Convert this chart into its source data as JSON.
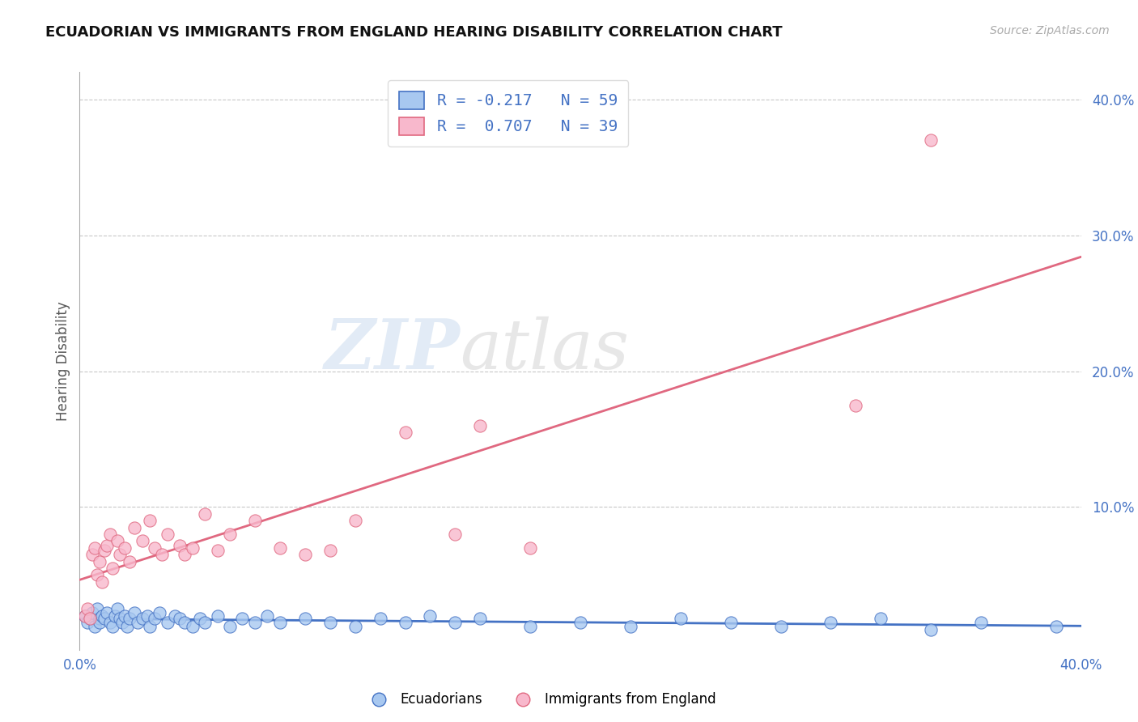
{
  "title": "ECUADORIAN VS IMMIGRANTS FROM ENGLAND HEARING DISABILITY CORRELATION CHART",
  "source_text": "Source: ZipAtlas.com",
  "ylabel": "Hearing Disability",
  "xlim": [
    0.0,
    0.4
  ],
  "ylim": [
    -0.005,
    0.42
  ],
  "ytick_vals": [
    0.0,
    0.1,
    0.2,
    0.3,
    0.4
  ],
  "ytick_labels": [
    "",
    "10.0%",
    "20.0%",
    "30.0%",
    "40.0%"
  ],
  "xtick_vals": [
    0.0,
    0.1,
    0.2,
    0.3,
    0.4
  ],
  "xtick_labels": [
    "0.0%",
    "",
    "",
    "",
    "40.0%"
  ],
  "blue_fill": "#A8C8F0",
  "pink_fill": "#F8B8CC",
  "blue_edge": "#4472C4",
  "pink_edge": "#E06880",
  "blue_line": "#4472C4",
  "pink_line": "#E06880",
  "r_blue": -0.217,
  "n_blue": 59,
  "r_pink": 0.707,
  "n_pink": 39,
  "watermark_top": "ZIP",
  "watermark_bot": "atlas",
  "blue_scatter_x": [
    0.002,
    0.003,
    0.004,
    0.005,
    0.006,
    0.007,
    0.008,
    0.008,
    0.009,
    0.01,
    0.011,
    0.012,
    0.013,
    0.014,
    0.015,
    0.016,
    0.017,
    0.018,
    0.019,
    0.02,
    0.022,
    0.023,
    0.025,
    0.027,
    0.028,
    0.03,
    0.032,
    0.035,
    0.038,
    0.04,
    0.042,
    0.045,
    0.048,
    0.05,
    0.055,
    0.06,
    0.065,
    0.07,
    0.075,
    0.08,
    0.09,
    0.1,
    0.11,
    0.12,
    0.13,
    0.14,
    0.15,
    0.16,
    0.18,
    0.2,
    0.22,
    0.24,
    0.26,
    0.28,
    0.3,
    0.32,
    0.34,
    0.36,
    0.39
  ],
  "blue_scatter_y": [
    0.02,
    0.015,
    0.018,
    0.022,
    0.012,
    0.025,
    0.018,
    0.015,
    0.02,
    0.018,
    0.022,
    0.015,
    0.012,
    0.02,
    0.025,
    0.018,
    0.015,
    0.02,
    0.012,
    0.018,
    0.022,
    0.015,
    0.018,
    0.02,
    0.012,
    0.018,
    0.022,
    0.015,
    0.02,
    0.018,
    0.015,
    0.012,
    0.018,
    0.015,
    0.02,
    0.012,
    0.018,
    0.015,
    0.02,
    0.015,
    0.018,
    0.015,
    0.012,
    0.018,
    0.015,
    0.02,
    0.015,
    0.018,
    0.012,
    0.015,
    0.012,
    0.018,
    0.015,
    0.012,
    0.015,
    0.018,
    0.01,
    0.015,
    0.012
  ],
  "pink_scatter_x": [
    0.002,
    0.003,
    0.004,
    0.005,
    0.006,
    0.007,
    0.008,
    0.009,
    0.01,
    0.011,
    0.012,
    0.013,
    0.015,
    0.016,
    0.018,
    0.02,
    0.022,
    0.025,
    0.028,
    0.03,
    0.033,
    0.035,
    0.04,
    0.042,
    0.045,
    0.05,
    0.055,
    0.06,
    0.07,
    0.08,
    0.09,
    0.1,
    0.11,
    0.13,
    0.15,
    0.16,
    0.18,
    0.31,
    0.34
  ],
  "pink_scatter_y": [
    0.02,
    0.025,
    0.018,
    0.065,
    0.07,
    0.05,
    0.06,
    0.045,
    0.068,
    0.072,
    0.08,
    0.055,
    0.075,
    0.065,
    0.07,
    0.06,
    0.085,
    0.075,
    0.09,
    0.07,
    0.065,
    0.08,
    0.072,
    0.065,
    0.07,
    0.095,
    0.068,
    0.08,
    0.09,
    0.07,
    0.065,
    0.068,
    0.09,
    0.155,
    0.08,
    0.16,
    0.07,
    0.175,
    0.37
  ]
}
